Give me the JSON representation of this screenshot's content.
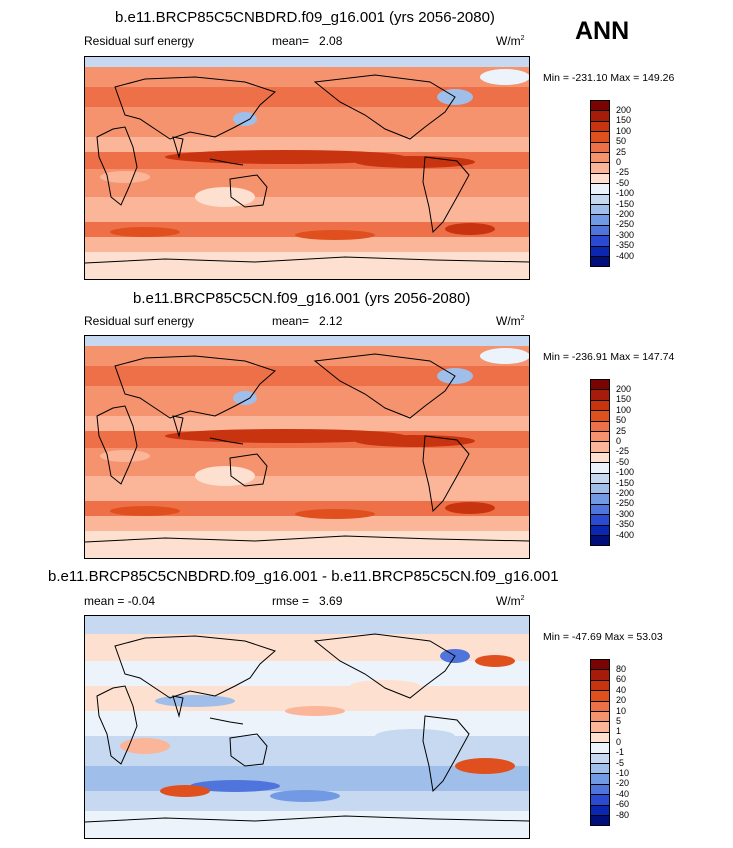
{
  "season": "ANN",
  "panels": [
    {
      "title": "b.e11.BRCP85C5CNBDRD.f09_g16.001 (yrs 2056-2080)",
      "left_label": "Residual surf energy",
      "stat_label": "mean=",
      "stat_value": "2.08",
      "units_base": "W/m",
      "units_exp": "2",
      "minmax": "Min = -231.10 Max = 149.26",
      "theme": "warm"
    },
    {
      "title": "b.e11.BRCP85C5CN.f09_g16.001 (yrs 2056-2080)",
      "left_label": "Residual surf energy",
      "stat_label": "mean=",
      "stat_value": "2.12",
      "units_base": "W/m",
      "units_exp": "2",
      "minmax": "Min = -236.91 Max = 147.74",
      "theme": "warm"
    },
    {
      "title": "b.e11.BRCP85C5CNBDRD.f09_g16.001 - b.e11.BRCP85C5CN.f09_g16.001",
      "left_label": "mean = -0.04",
      "stat_label": "rmse =",
      "stat_value": "3.69",
      "units_base": "W/m",
      "units_exp": "2",
      "minmax": "Min = -47.69 Max = 53.03",
      "theme": "diff"
    }
  ],
  "colorbars": {
    "abs": {
      "labels": [
        "200",
        "150",
        "100",
        "50",
        "25",
        "0",
        "-25",
        "-50",
        "-100",
        "-150",
        "-200",
        "-250",
        "-300",
        "-350",
        "-400"
      ],
      "colors": [
        "#7a0403",
        "#a51c0a",
        "#c8340f",
        "#e0501f",
        "#ee7048",
        "#f6936f",
        "#fbb598",
        "#fde0cf",
        "#ecf3fb",
        "#c6d9f1",
        "#9fbeea",
        "#7299e3",
        "#4f75dc",
        "#2a4bd1",
        "#0b27b2",
        "#000f7a"
      ]
    },
    "diff": {
      "labels": [
        "80",
        "60",
        "40",
        "20",
        "10",
        "5",
        "1",
        "0",
        "-1",
        "-5",
        "-10",
        "-20",
        "-40",
        "-60",
        "-80"
      ],
      "colors": [
        "#7a0403",
        "#a51c0a",
        "#c8340f",
        "#e0501f",
        "#ee7048",
        "#f6936f",
        "#fbb598",
        "#fde0cf",
        "#ecf3fb",
        "#c6d9f1",
        "#9fbeea",
        "#7299e3",
        "#4f75dc",
        "#2a4bd1",
        "#0b27b2",
        "#000f7a"
      ]
    }
  }
}
